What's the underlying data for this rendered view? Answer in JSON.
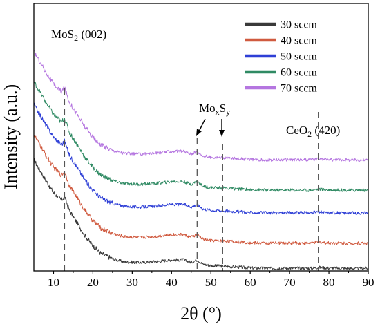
{
  "chart_data": {
    "type": "line",
    "xlabel": "2θ (°)",
    "ylabel": "Intensity (a.u.)",
    "xlim": [
      5,
      90
    ],
    "xticks": [
      10,
      20,
      30,
      40,
      50,
      60,
      70,
      80,
      90
    ],
    "grid": false,
    "legend_position": "top-right",
    "series": [
      {
        "name": "30 sccm",
        "color": "#3a3a3a",
        "offset": 0,
        "x": [
          5,
          8,
          10,
          12,
          12.8,
          14,
          16,
          18,
          20,
          22,
          25,
          28,
          32,
          36,
          40,
          43,
          45,
          46.5,
          48,
          50,
          53,
          56,
          60,
          65,
          70,
          75,
          77.3,
          80,
          85,
          90
        ],
        "y": [
          44,
          36,
          31,
          28,
          29.5,
          24,
          19,
          14,
          10,
          7,
          4.8,
          3.6,
          3.3,
          3.7,
          4.4,
          4.4,
          3.4,
          4.4,
          2.6,
          2.1,
          1.9,
          1.6,
          1.2,
          1.0,
          1.1,
          1.0,
          1.4,
          1.1,
          1.0,
          1.0
        ]
      },
      {
        "name": "40 sccm",
        "color": "#d05a3f",
        "offset": 10,
        "x": [
          5,
          8,
          10,
          12,
          12.8,
          14,
          16,
          18,
          20,
          22,
          25,
          28,
          32,
          36,
          40,
          43,
          45,
          46.5,
          48,
          50,
          53,
          56,
          60,
          65,
          70,
          75,
          77.3,
          80,
          85,
          90
        ],
        "y": [
          44,
          36,
          31,
          28,
          29.5,
          24,
          19,
          14,
          10,
          7,
          4.8,
          3.6,
          3.3,
          3.7,
          4.4,
          4.4,
          3.4,
          4.4,
          2.6,
          2.1,
          1.9,
          1.6,
          1.2,
          1.0,
          1.1,
          1.0,
          1.4,
          1.1,
          1.0,
          1.0
        ]
      },
      {
        "name": "50 sccm",
        "color": "#2e3fd6",
        "offset": 22,
        "x": [
          5,
          8,
          10,
          12,
          12.8,
          14,
          16,
          18,
          20,
          22,
          25,
          28,
          32,
          36,
          40,
          43,
          45,
          46.5,
          48,
          50,
          53,
          56,
          60,
          65,
          70,
          75,
          77.3,
          80,
          85,
          90
        ],
        "y": [
          44,
          36,
          31,
          28,
          29.5,
          24,
          19,
          14,
          10,
          7,
          4.8,
          3.6,
          3.3,
          3.7,
          4.4,
          4.4,
          3.4,
          4.4,
          2.6,
          2.1,
          1.9,
          1.6,
          1.2,
          1.0,
          1.1,
          1.0,
          1.4,
          1.1,
          1.0,
          1.0
        ]
      },
      {
        "name": "60 sccm",
        "color": "#2f8a63",
        "offset": 31,
        "x": [
          5,
          8,
          10,
          12,
          12.8,
          14,
          16,
          18,
          20,
          22,
          25,
          28,
          32,
          36,
          40,
          43,
          45,
          46.5,
          48,
          50,
          53,
          56,
          60,
          65,
          70,
          75,
          77.3,
          80,
          85,
          90
        ],
        "y": [
          44,
          36,
          31,
          28,
          29.5,
          24,
          19,
          14,
          10,
          7,
          4.8,
          3.6,
          3.3,
          3.7,
          4.4,
          4.4,
          3.4,
          4.4,
          2.6,
          2.1,
          1.9,
          1.6,
          1.2,
          1.0,
          1.1,
          1.0,
          1.4,
          1.1,
          1.0,
          1.0
        ]
      },
      {
        "name": "70 sccm",
        "color": "#b576e0",
        "offset": 43,
        "x": [
          5,
          8,
          10,
          12,
          12.8,
          14,
          16,
          18,
          20,
          22,
          25,
          28,
          32,
          36,
          40,
          43,
          45,
          46.5,
          48,
          50,
          53,
          56,
          60,
          65,
          70,
          75,
          77.3,
          80,
          85,
          90
        ],
        "y": [
          44,
          36,
          31,
          28,
          29.5,
          24,
          19,
          14,
          10,
          7,
          4.8,
          3.6,
          3.3,
          3.7,
          4.4,
          4.4,
          3.4,
          4.4,
          2.6,
          2.1,
          1.9,
          1.6,
          1.2,
          1.0,
          1.1,
          1.0,
          1.4,
          1.1,
          1.0,
          1.0
        ]
      }
    ],
    "reference_lines": [
      12.8,
      46.5,
      53,
      77.3
    ],
    "annotations": {
      "mos2": {
        "main": "MoS",
        "sub": "2",
        "rest": " (002)"
      },
      "moxsy": {
        "m1": "Mo",
        "s1": "x",
        "m2": "S",
        "s2": "y"
      },
      "ceo2": {
        "main": "CeO",
        "sub": "2",
        "rest": " (420)"
      }
    }
  }
}
